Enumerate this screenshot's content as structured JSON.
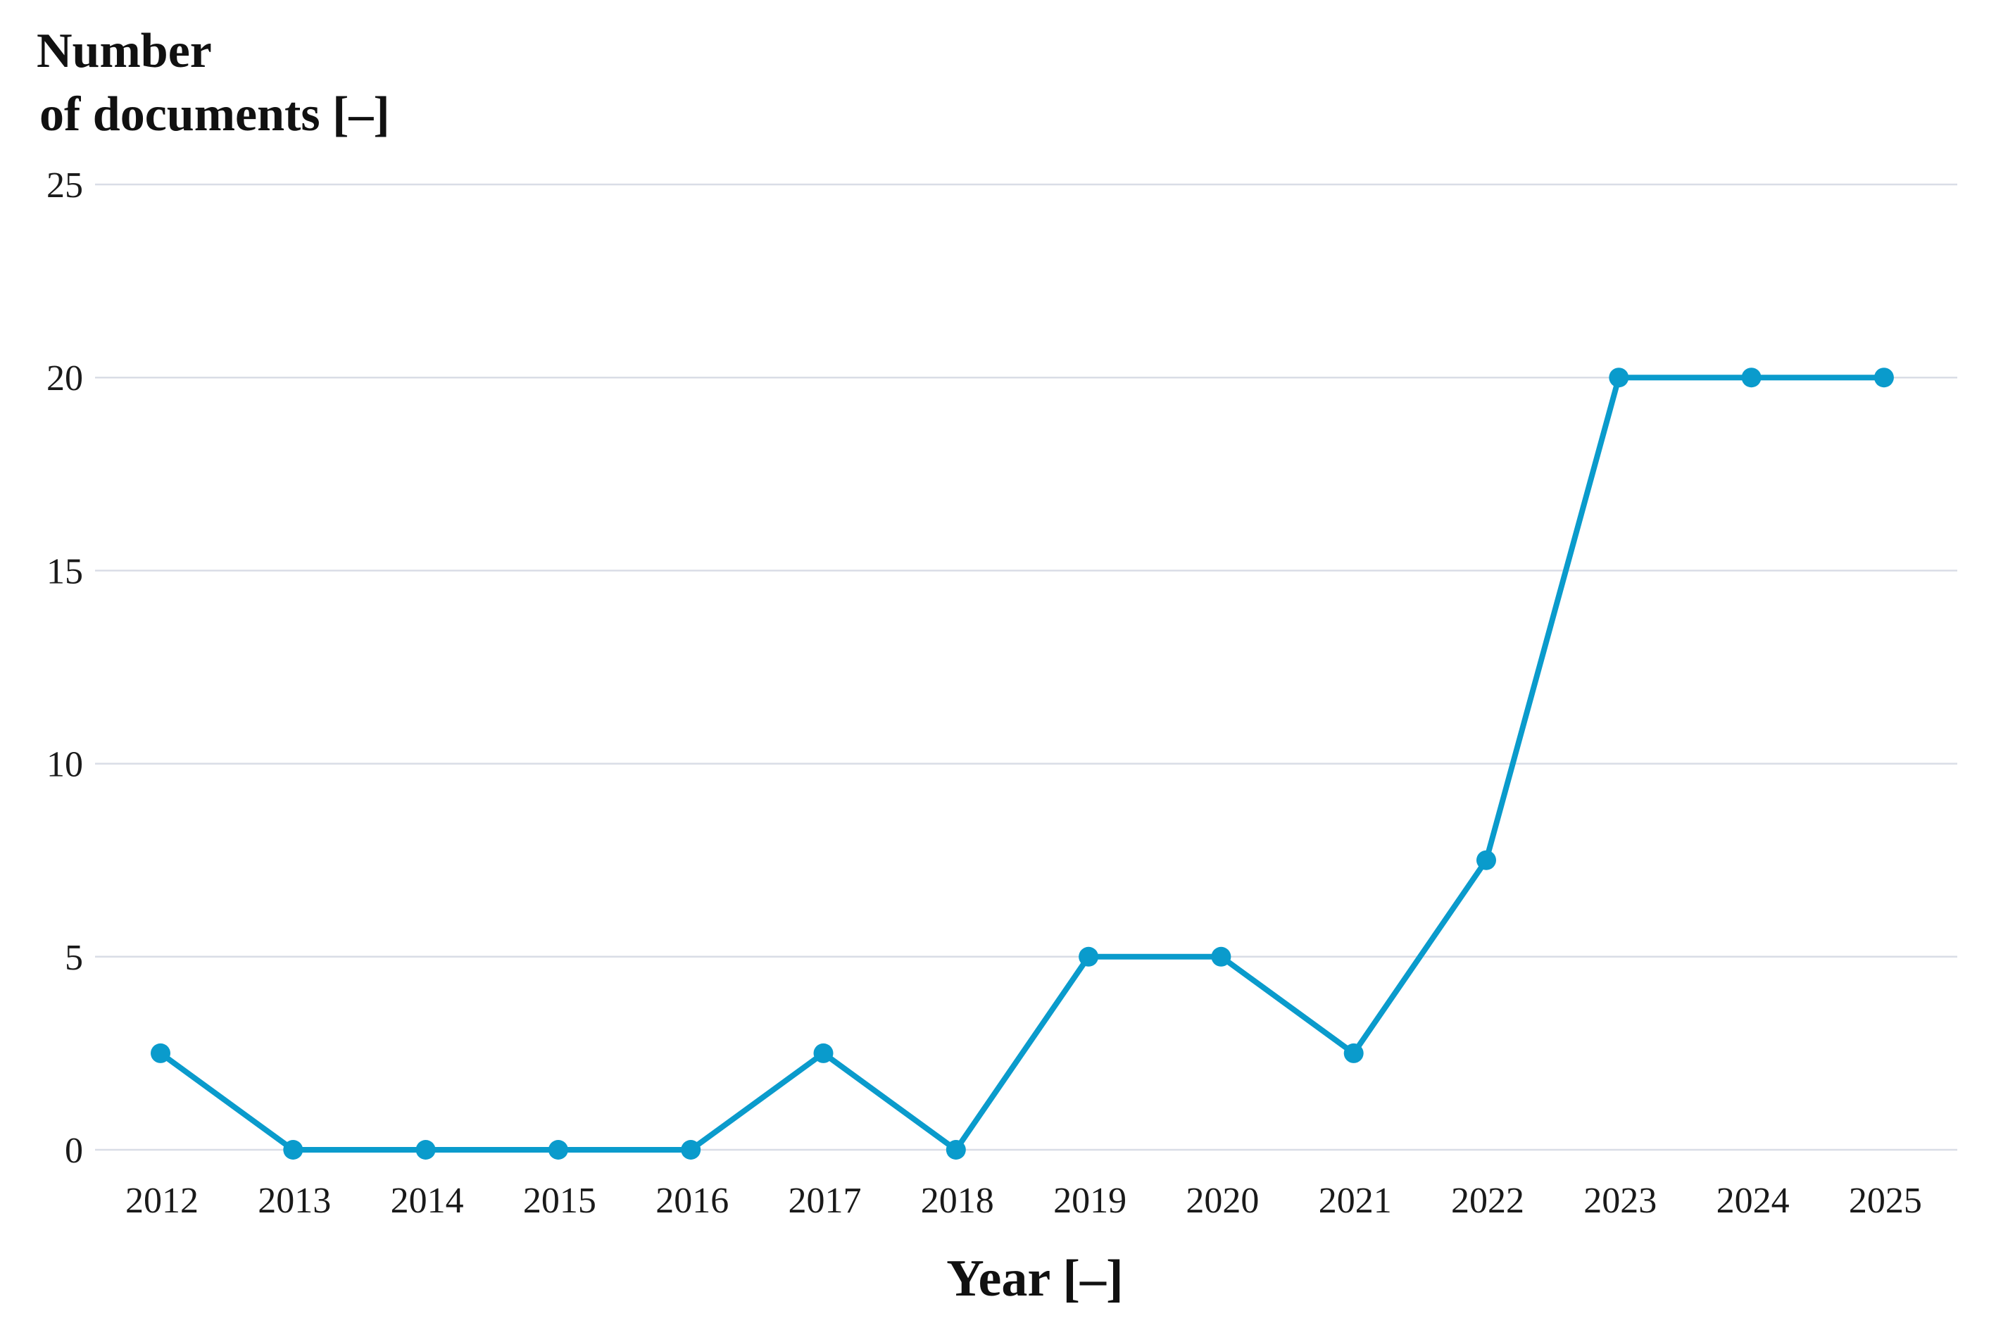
{
  "chart_data": {
    "type": "line",
    "title": "",
    "ylabel_lines": [
      "Number",
      "of documents [–]"
    ],
    "xlabel": "Year [–]",
    "categories": [
      "2012",
      "2013",
      "2014",
      "2015",
      "2016",
      "2017",
      "2018",
      "2019",
      "2020",
      "2021",
      "2022",
      "2023",
      "2024",
      "2025"
    ],
    "series": [
      {
        "values": [
          2.5,
          0,
          0,
          0,
          0,
          2.5,
          0,
          5,
          5,
          2.5,
          7.5,
          20,
          20,
          20
        ],
        "color": "#0a9bcc"
      }
    ],
    "ylim": [
      0,
      25
    ],
    "yticks": [
      0,
      5,
      10,
      15,
      20,
      25
    ],
    "grid": true,
    "legend": "none",
    "colors": {
      "line": "#0a9bcc",
      "grid": "#d9dde6",
      "axis": "#c9cfe0"
    }
  }
}
